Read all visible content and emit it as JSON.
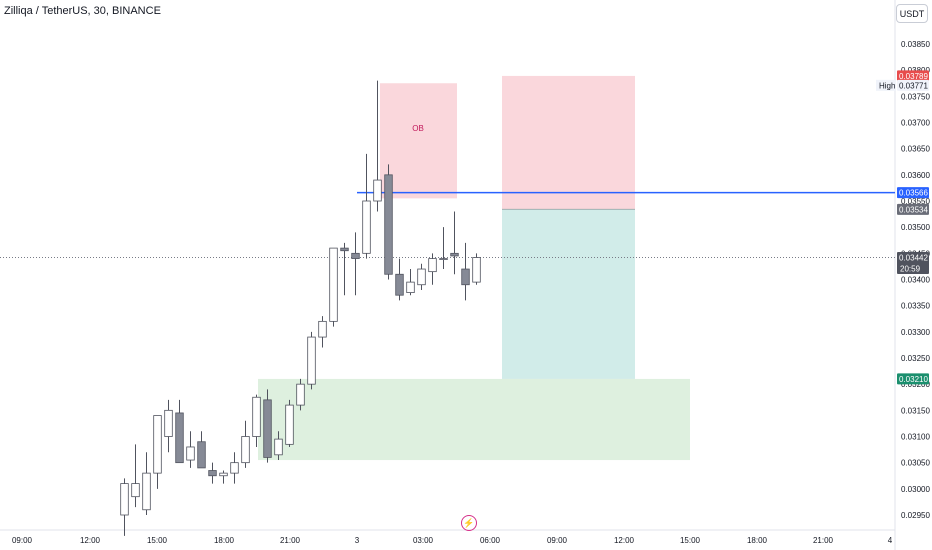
{
  "header": {
    "title": "Zilliqa / TetherUS, 30, BINANCE",
    "currency": "USDT"
  },
  "footer": {
    "event_icon": "lightning-icon"
  },
  "colors": {
    "candle_up_fill": "#ffffff",
    "candle_down_fill": "#868a96",
    "candle_border": "#50535e",
    "resistance_zone": "#f8c6cd",
    "support_zone": "#c8e6c9",
    "target_zone": "#b2dfdb",
    "blue_line": "#2962ff",
    "high_badge": "#e84c4c",
    "support_badge": "#1b8f6e",
    "neutral_badge": "#6a6d78"
  },
  "chart_data": {
    "type": "candlestick",
    "title": "Zilliqa / TetherUS, 30, BINANCE",
    "y_axis": {
      "ticks": [
        "0.02950",
        "0.03000",
        "0.03050",
        "0.03100",
        "0.03150",
        "0.03200",
        "0.03250",
        "0.03300",
        "0.03350",
        "0.03400",
        "0.03450",
        "0.03500",
        "0.03550",
        "0.03600",
        "0.03650",
        "0.03700",
        "0.03750",
        "0.03800",
        "0.03850"
      ]
    },
    "x_axis": {
      "ticks": [
        "09:00",
        "12:00",
        "15:00",
        "18:00",
        "21:00",
        "3",
        "03:00",
        "06:00",
        "09:00",
        "12:00",
        "15:00",
        "18:00",
        "21:00",
        "4"
      ]
    },
    "candles": [
      {
        "o": 0.0295,
        "h": 0.0302,
        "l": 0.0291,
        "c": 0.0301
      },
      {
        "o": 0.02985,
        "h": 0.03085,
        "l": 0.02965,
        "c": 0.0301
      },
      {
        "o": 0.0296,
        "h": 0.0307,
        "l": 0.0295,
        "c": 0.0303
      },
      {
        "o": 0.0303,
        "h": 0.0314,
        "l": 0.03,
        "c": 0.0314
      },
      {
        "o": 0.031,
        "h": 0.0317,
        "l": 0.0307,
        "c": 0.0315
      },
      {
        "o": 0.03145,
        "h": 0.0317,
        "l": 0.0305,
        "c": 0.0305
      },
      {
        "o": 0.03055,
        "h": 0.0311,
        "l": 0.0304,
        "c": 0.0308
      },
      {
        "o": 0.0309,
        "h": 0.0311,
        "l": 0.0304,
        "c": 0.0304
      },
      {
        "o": 0.03035,
        "h": 0.0305,
        "l": 0.0301,
        "c": 0.03025
      },
      {
        "o": 0.03025,
        "h": 0.03035,
        "l": 0.0301,
        "c": 0.0303
      },
      {
        "o": 0.0303,
        "h": 0.0307,
        "l": 0.0301,
        "c": 0.0305
      },
      {
        "o": 0.0305,
        "h": 0.0313,
        "l": 0.0304,
        "c": 0.031
      },
      {
        "o": 0.031,
        "h": 0.0318,
        "l": 0.0308,
        "c": 0.03175
      },
      {
        "o": 0.0317,
        "h": 0.0319,
        "l": 0.0305,
        "c": 0.0306
      },
      {
        "o": 0.03065,
        "h": 0.0311,
        "l": 0.03055,
        "c": 0.03095
      },
      {
        "o": 0.03085,
        "h": 0.0317,
        "l": 0.0308,
        "c": 0.0316
      },
      {
        "o": 0.0316,
        "h": 0.0321,
        "l": 0.0315,
        "c": 0.032
      },
      {
        "o": 0.032,
        "h": 0.033,
        "l": 0.0319,
        "c": 0.0329
      },
      {
        "o": 0.0329,
        "h": 0.0333,
        "l": 0.0327,
        "c": 0.0332
      },
      {
        "o": 0.0332,
        "h": 0.0346,
        "l": 0.0331,
        "c": 0.0346
      },
      {
        "o": 0.0346,
        "h": 0.0347,
        "l": 0.0337,
        "c": 0.03455
      },
      {
        "o": 0.0345,
        "h": 0.0349,
        "l": 0.0337,
        "c": 0.0344
      },
      {
        "o": 0.0345,
        "h": 0.0364,
        "l": 0.0344,
        "c": 0.0355
      },
      {
        "o": 0.0355,
        "h": 0.0378,
        "l": 0.0353,
        "c": 0.0359
      },
      {
        "o": 0.036,
        "h": 0.0362,
        "l": 0.034,
        "c": 0.0341
      },
      {
        "o": 0.0341,
        "h": 0.0344,
        "l": 0.0336,
        "c": 0.0337
      },
      {
        "o": 0.03375,
        "h": 0.0342,
        "l": 0.0337,
        "c": 0.03395
      },
      {
        "o": 0.0339,
        "h": 0.0343,
        "l": 0.0338,
        "c": 0.0342
      },
      {
        "o": 0.03415,
        "h": 0.0345,
        "l": 0.0339,
        "c": 0.0344
      },
      {
        "o": 0.0344,
        "h": 0.035,
        "l": 0.0342,
        "c": 0.0344
      },
      {
        "o": 0.0345,
        "h": 0.0353,
        "l": 0.0341,
        "c": 0.03445
      },
      {
        "o": 0.0342,
        "h": 0.0347,
        "l": 0.0336,
        "c": 0.0339
      },
      {
        "o": 0.03395,
        "h": 0.0345,
        "l": 0.0339,
        "c": 0.03442
      }
    ],
    "annotations": {
      "ob_zone": {
        "label": "OB",
        "price_top": 0.03775,
        "price_bottom": 0.03555
      },
      "supply_zone": {
        "price_top": 0.03789,
        "price_bottom": 0.03534
      },
      "target_zone": {
        "price_top": 0.03534,
        "price_bottom": 0.0321
      },
      "demand_zone": {
        "price_top": 0.0321,
        "price_bottom": 0.03055
      },
      "blue_level": 0.03566,
      "current_price": 0.03442
    },
    "price_badges": [
      {
        "value": "0.03789",
        "label": "",
        "style": "high"
      },
      {
        "value": "0.03771",
        "label": "High",
        "style": "plain"
      },
      {
        "value": "0.03566",
        "label": "",
        "style": "blue"
      },
      {
        "value": "0.03534",
        "label": "",
        "style": "neutral"
      },
      {
        "value": "0.03442",
        "label": "",
        "style": "current",
        "extra": "20:59"
      },
      {
        "value": "0.03210",
        "label": "",
        "style": "support"
      }
    ]
  }
}
